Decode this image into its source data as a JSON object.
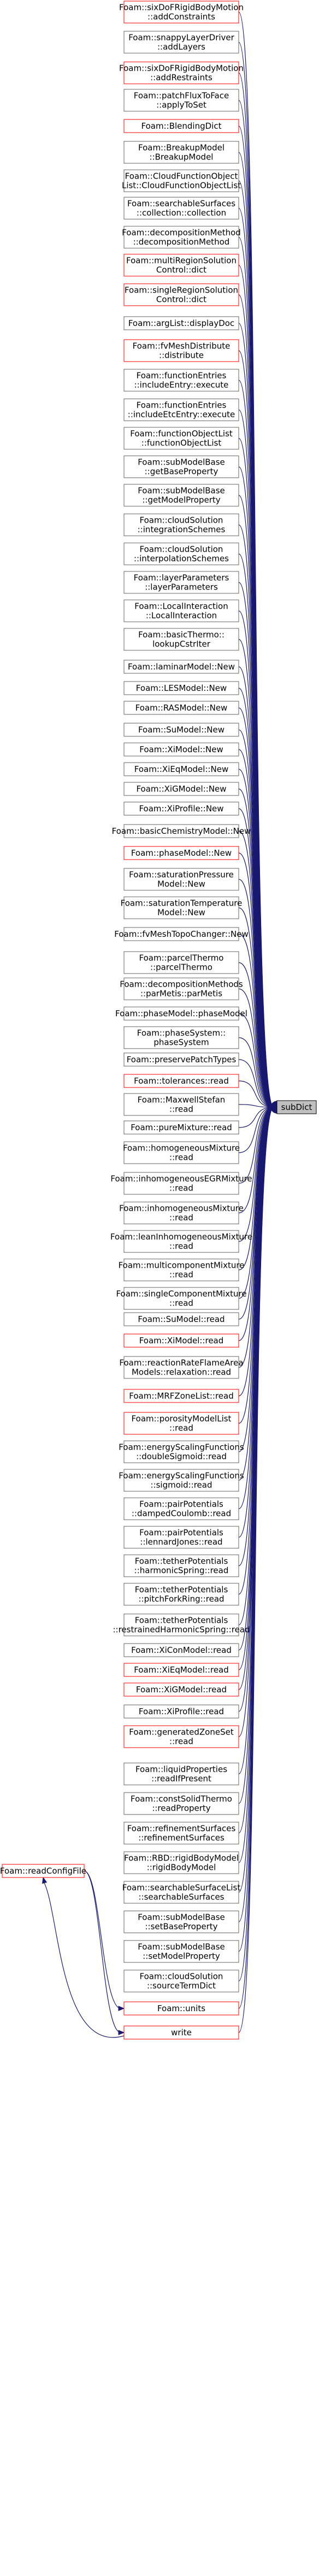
{
  "focus": {
    "label": "subDict"
  },
  "sources": [
    {
      "name": "Foam::readConfigFile",
      "red": true
    }
  ],
  "callers": [
    {
      "lines": [
        "Foam::sixDoFRigidBodyMotion",
        "::addConstraints"
      ],
      "red": true
    },
    {
      "lines": [
        "Foam::snappyLayerDriver",
        "::addLayers"
      ],
      "red": false
    },
    {
      "lines": [
        "Foam::sixDoFRigidBodyMotion",
        "::addRestraints"
      ],
      "red": true
    },
    {
      "lines": [
        "Foam::patchFluxToFace",
        "::applyToSet"
      ],
      "red": false
    },
    {
      "lines": [
        "Foam::BlendingDict"
      ],
      "red": true
    },
    {
      "lines": [
        "Foam::BreakupModel",
        "::BreakupModel"
      ],
      "red": false
    },
    {
      "lines": [
        "Foam::CloudFunctionObject",
        "List::CloudFunctionObjectList"
      ],
      "red": false
    },
    {
      "lines": [
        "Foam::searchableSurfaces",
        "::collection::collection"
      ],
      "red": false
    },
    {
      "lines": [
        "Foam::decompositionMethod",
        "::decompositionMethod"
      ],
      "red": false
    },
    {
      "lines": [
        "Foam::multiRegionSolution",
        "Control::dict"
      ],
      "red": true
    },
    {
      "lines": [
        "Foam::singleRegionSolution",
        "Control::dict"
      ],
      "red": true
    },
    {
      "lines": [
        "Foam::argList::displayDoc"
      ],
      "red": false
    },
    {
      "lines": [
        "Foam::fvMeshDistribute",
        "::distribute"
      ],
      "red": true
    },
    {
      "lines": [
        "Foam::functionEntries",
        "::includeEntry::execute"
      ],
      "red": false
    },
    {
      "lines": [
        "Foam::functionEntries",
        "::includeEtcEntry::execute"
      ],
      "red": false
    },
    {
      "lines": [
        "Foam::functionObjectList",
        "::functionObjectList"
      ],
      "red": false
    },
    {
      "lines": [
        "Foam::subModelBase",
        "::getBaseProperty"
      ],
      "red": false
    },
    {
      "lines": [
        "Foam::subModelBase",
        "::getModelProperty"
      ],
      "red": false
    },
    {
      "lines": [
        "Foam::cloudSolution",
        "::integrationSchemes"
      ],
      "red": false
    },
    {
      "lines": [
        "Foam::cloudSolution",
        "::interpolationSchemes"
      ],
      "red": false
    },
    {
      "lines": [
        "Foam::layerParameters",
        "::layerParameters"
      ],
      "red": false
    },
    {
      "lines": [
        "Foam::LocalInteraction",
        "::LocalInteraction"
      ],
      "red": false
    },
    {
      "lines": [
        "Foam::basicThermo::",
        "lookupCstrIter"
      ],
      "red": false
    },
    {
      "lines": [
        "Foam::laminarModel::New"
      ],
      "red": false
    },
    {
      "lines": [
        "Foam::LESModel::New"
      ],
      "red": false
    },
    {
      "lines": [
        "Foam::RASModel::New"
      ],
      "red": false
    },
    {
      "lines": [
        "Foam::SuModel::New"
      ],
      "red": false
    },
    {
      "lines": [
        "Foam::XiModel::New"
      ],
      "red": false
    },
    {
      "lines": [
        "Foam::XiEqModel::New"
      ],
      "red": false
    },
    {
      "lines": [
        "Foam::XiGModel::New"
      ],
      "red": false
    },
    {
      "lines": [
        "Foam::XiProfile::New"
      ],
      "red": false
    },
    {
      "lines": [
        "Foam::basicChemistryModel::New"
      ],
      "red": false
    },
    {
      "lines": [
        "Foam::phaseModel::New"
      ],
      "red": true
    },
    {
      "lines": [
        "Foam::saturationPressure",
        "Model::New"
      ],
      "red": false
    },
    {
      "lines": [
        "Foam::saturationTemperature",
        "Model::New"
      ],
      "red": false
    },
    {
      "lines": [
        "Foam::fvMeshTopoChanger::New"
      ],
      "red": false
    },
    {
      "lines": [
        "Foam::parcelThermo",
        "::parcelThermo"
      ],
      "red": false
    },
    {
      "lines": [
        "Foam::decompositionMethods",
        "::parMetis::parMetis"
      ],
      "red": false
    },
    {
      "lines": [
        "Foam::phaseModel::phaseModel"
      ],
      "red": false
    },
    {
      "lines": [
        "Foam::phaseSystem::",
        "phaseSystem"
      ],
      "red": false
    },
    {
      "lines": [
        "Foam::preservePatchTypes"
      ],
      "red": false
    },
    {
      "lines": [
        "Foam::tolerances::read"
      ],
      "red": true
    },
    {
      "lines": [
        "Foam::MaxwellStefan",
        "::read"
      ],
      "red": false
    },
    {
      "lines": [
        "Foam::pureMixture::read"
      ],
      "red": false
    },
    {
      "lines": [
        "Foam::homogeneousMixture",
        "::read"
      ],
      "red": false
    },
    {
      "lines": [
        "Foam::inhomogeneousEGRMixture",
        "::read"
      ],
      "red": false
    },
    {
      "lines": [
        "Foam::inhomogeneousMixture",
        "::read"
      ],
      "red": false
    },
    {
      "lines": [
        "Foam::leanInhomogeneousMixture",
        "::read"
      ],
      "red": false
    },
    {
      "lines": [
        "Foam::multicomponentMixture",
        "::read"
      ],
      "red": false
    },
    {
      "lines": [
        "Foam::singleComponentMixture",
        "::read"
      ],
      "red": false
    },
    {
      "lines": [
        "Foam::SuModel::read"
      ],
      "red": false
    },
    {
      "lines": [
        "Foam::XiModel::read"
      ],
      "red": true
    },
    {
      "lines": [
        "Foam::reactionRateFlameArea",
        "Models::relaxation::read"
      ],
      "red": false
    },
    {
      "lines": [
        "Foam::MRFZoneList::read"
      ],
      "red": true
    },
    {
      "lines": [
        "Foam::porosityModelList",
        "::read"
      ],
      "red": true
    },
    {
      "lines": [
        "Foam::energyScalingFunctions",
        "::doubleSigmoid::read"
      ],
      "red": false
    },
    {
      "lines": [
        "Foam::energyScalingFunctions",
        "::sigmoid::read"
      ],
      "red": false
    },
    {
      "lines": [
        "Foam::pairPotentials",
        "::dampedCoulomb::read"
      ],
      "red": false
    },
    {
      "lines": [
        "Foam::pairPotentials",
        "::lennardJones::read"
      ],
      "red": false
    },
    {
      "lines": [
        "Foam::tetherPotentials",
        "::harmonicSpring::read"
      ],
      "red": false
    },
    {
      "lines": [
        "Foam::tetherPotentials",
        "::pitchForkRing::read"
      ],
      "red": false
    },
    {
      "lines": [
        "Foam::tetherPotentials",
        "::restrainedHarmonicSpring::read"
      ],
      "red": false
    },
    {
      "lines": [
        "Foam::XiConModel::read"
      ],
      "red": false
    },
    {
      "lines": [
        "Foam::XiEqModel::read"
      ],
      "red": true
    },
    {
      "lines": [
        "Foam::XiGModel::read"
      ],
      "red": true
    },
    {
      "lines": [
        "Foam::XiProfile::read"
      ],
      "red": false
    },
    {
      "lines": [
        "Foam::generatedZoneSet",
        "::read"
      ],
      "red": true
    },
    {
      "lines": [
        "Foam::liquidProperties",
        "::readIfPresent"
      ],
      "red": false
    },
    {
      "lines": [
        "Foam::constSolidThermo",
        "::readProperty"
      ],
      "red": false
    },
    {
      "lines": [
        "Foam::refinementSurfaces",
        "::refinementSurfaces"
      ],
      "red": false
    },
    {
      "lines": [
        "Foam::RBD::rigidBodyModel",
        "::rigidBodyModel"
      ],
      "red": false
    },
    {
      "lines": [
        "Foam::searchableSurfaceList",
        "::searchableSurfaces"
      ],
      "red": false
    },
    {
      "lines": [
        "Foam::subModelBase",
        "::setBaseProperty"
      ],
      "red": false
    },
    {
      "lines": [
        "Foam::subModelBase",
        "::setModelProperty"
      ],
      "red": false
    },
    {
      "lines": [
        "Foam::cloudSolution",
        "::sourceTermDict"
      ],
      "red": false
    },
    {
      "lines": [
        "Foam::units"
      ],
      "red": true
    },
    {
      "lines": [
        "write"
      ],
      "red": true
    }
  ]
}
